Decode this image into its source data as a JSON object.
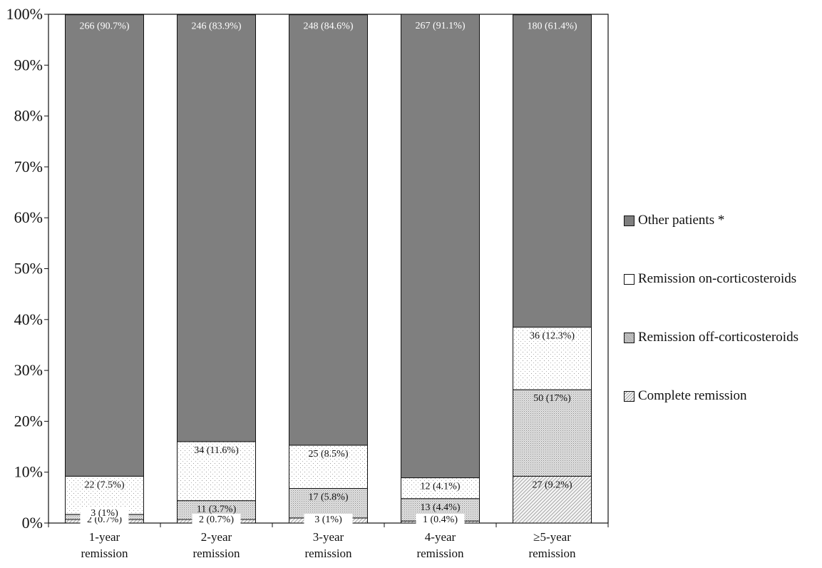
{
  "chart_data": {
    "type": "bar",
    "stacked": true,
    "percent_stacked": true,
    "title": "",
    "xlabel": "",
    "ylabel": "",
    "ylim": [
      0,
      100
    ],
    "yticks": [
      "0%",
      "10%",
      "20%",
      "30%",
      "40%",
      "50%",
      "60%",
      "70%",
      "80%",
      "90%",
      "100%"
    ],
    "categories": [
      [
        "1-year",
        "remission"
      ],
      [
        "2-year",
        "remission"
      ],
      [
        "3-year",
        "remission"
      ],
      [
        "4-year",
        "remission"
      ],
      [
        "≥5-year",
        "remission"
      ]
    ],
    "series": [
      {
        "name": "Complete remission",
        "values": [
          0.7,
          0.7,
          1.0,
          0.4,
          9.2
        ],
        "labels": [
          "2 (0.7%)",
          "2 (0.7%)",
          "3 (1%)",
          "1 (0.4%)",
          "27 (9.2%)"
        ],
        "pattern": "diagonal",
        "color": "#ffffff"
      },
      {
        "name": "Remission off-corticosteroids",
        "values": [
          1.0,
          3.7,
          5.8,
          4.4,
          17.0
        ],
        "labels": [
          "3 (1%)",
          "11 (3.7%)",
          "17 (5.8%)",
          "13 (4.4%)",
          "50 (17%)"
        ],
        "pattern": "dense-dots",
        "color": "#d8d8d8"
      },
      {
        "name": "Remission on-corticosteroids",
        "values": [
          7.5,
          11.6,
          8.5,
          4.1,
          12.3
        ],
        "labels": [
          "22 (7.5%)",
          "34 (11.6%)",
          "25 (8.5%)",
          "12 (4.1%)",
          "36 (12.3%)"
        ],
        "pattern": "sparse-dots",
        "color": "#ffffff"
      },
      {
        "name": "Other patients *",
        "values": [
          90.7,
          83.9,
          84.6,
          91.1,
          61.4
        ],
        "labels": [
          "266 (90.7%)",
          "246 (83.9%)",
          "248 (84.6%)",
          "267 (91.1%)",
          "180 (61.4%)"
        ],
        "pattern": "solid",
        "color": "#7f7f7f"
      }
    ],
    "legend": {
      "placement": "right",
      "items": [
        "Other patients *",
        "Remission on-corticosteroids",
        "Remission off-corticosteroids",
        "Complete remission"
      ]
    },
    "grid": false
  }
}
